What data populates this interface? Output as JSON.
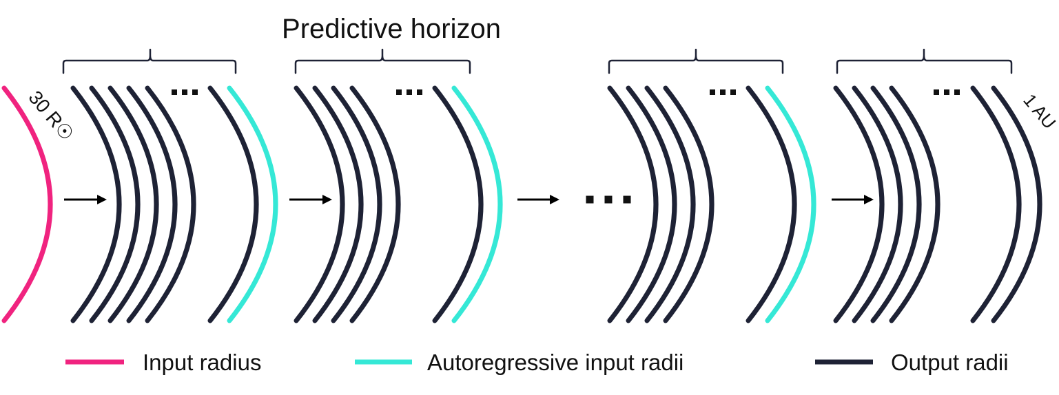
{
  "title": "Predictive horizon",
  "inner_boundary_label": "30 R☉",
  "outer_boundary_label": "1 AU",
  "ellipsis": "…",
  "colors": {
    "input_radius": "#f0237f",
    "autoregressive_input": "#35e8d6",
    "output_radii": "#1e2235",
    "arrow": "#000000",
    "bracket": "#1e2235"
  },
  "legend": [
    {
      "label": "Input radius",
      "color_key": "input_radius"
    },
    {
      "label": "Autoregressive input radii",
      "color_key": "autoregressive_input"
    },
    {
      "label": "Output radii",
      "color_key": "output_radii"
    }
  ],
  "blocks": [
    {
      "output_arcs": 5,
      "ends_with_autoregressive_input": true
    },
    {
      "output_arcs": 4,
      "ends_with_autoregressive_input": true
    },
    {
      "output_arcs": 4,
      "ends_with_autoregressive_input": true
    },
    {
      "output_arcs": 4,
      "ends_with_autoregressive_input": false
    }
  ]
}
